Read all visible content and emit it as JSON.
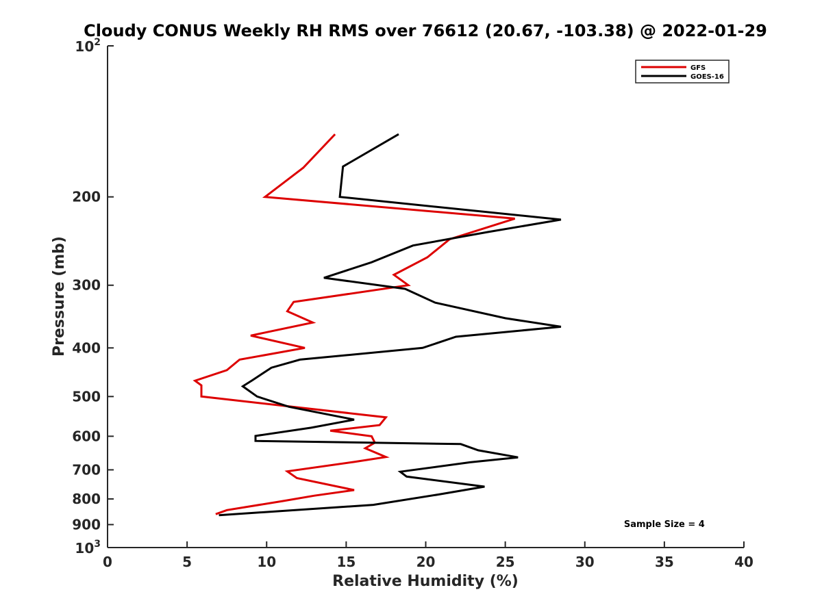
{
  "chart_data": {
    "type": "line",
    "title": "Cloudy CONUS Weekly RH RMS over 76612 (20.67, -103.38) @ 2022-01-29",
    "xlabel": "Relative Humidity (%)",
    "ylabel": "Pressure (mb)",
    "xlim": [
      0,
      40
    ],
    "ylim": [
      100,
      1000
    ],
    "yscale": "log",
    "y_reversed": true,
    "grid": false,
    "legend_position": "top-right",
    "x_ticks": [
      0,
      5,
      10,
      15,
      20,
      25,
      30,
      35,
      40
    ],
    "x_tick_labels": [
      "0",
      "5",
      "10",
      "15",
      "20",
      "25",
      "30",
      "35",
      "40"
    ],
    "y_ticks": [
      200,
      300,
      400,
      500,
      600,
      700,
      800,
      900
    ],
    "y_tick_labels": [
      "200",
      "300",
      "400",
      "500",
      "600",
      "700",
      "800",
      "900"
    ],
    "y_decade_ticks": [
      100,
      1000
    ],
    "y_decade_labels": [
      {
        "base": "10",
        "exp": "2"
      },
      {
        "base": "10",
        "exp": "3"
      }
    ],
    "series": [
      {
        "name": "GFS",
        "color": "#dd0000",
        "points": [
          [
            14.3,
            150
          ],
          [
            12.3,
            175
          ],
          [
            9.9,
            200
          ],
          [
            25.6,
            221
          ],
          [
            21.5,
            243
          ],
          [
            20.1,
            264
          ],
          [
            18.0,
            286
          ],
          [
            18.9,
            300
          ],
          [
            11.7,
            324
          ],
          [
            11.3,
            338
          ],
          [
            12.9,
            356
          ],
          [
            9.0,
            378
          ],
          [
            12.4,
            400
          ],
          [
            8.3,
            422
          ],
          [
            7.5,
            443
          ],
          [
            5.5,
            465
          ],
          [
            5.9,
            475
          ],
          [
            5.9,
            500
          ],
          [
            17.5,
            550
          ],
          [
            17.1,
            570
          ],
          [
            14.0,
            585
          ],
          [
            16.6,
            600
          ],
          [
            16.8,
            618
          ],
          [
            16.2,
            634
          ],
          [
            17.5,
            660
          ],
          [
            15.5,
            675
          ],
          [
            11.3,
            705
          ],
          [
            11.9,
            727
          ],
          [
            15.5,
            768
          ],
          [
            13.0,
            788
          ],
          [
            11.0,
            808
          ],
          [
            7.5,
            842
          ],
          [
            6.8,
            858
          ]
        ]
      },
      {
        "name": "GOES-16",
        "color": "#000000",
        "points": [
          [
            18.3,
            150
          ],
          [
            14.8,
            174
          ],
          [
            14.6,
            200
          ],
          [
            28.5,
            222
          ],
          [
            23.9,
            235
          ],
          [
            19.2,
            250
          ],
          [
            16.6,
            270
          ],
          [
            13.6,
            290
          ],
          [
            18.7,
            305
          ],
          [
            20.6,
            325
          ],
          [
            25.0,
            349
          ],
          [
            28.5,
            363
          ],
          [
            21.9,
            380
          ],
          [
            19.8,
            400
          ],
          [
            12.1,
            422
          ],
          [
            10.3,
            438
          ],
          [
            9.1,
            464
          ],
          [
            8.5,
            477
          ],
          [
            9.4,
            500
          ],
          [
            11.4,
            524
          ],
          [
            15.5,
            556
          ],
          [
            12.8,
            577
          ],
          [
            9.3,
            599
          ],
          [
            9.3,
            613
          ],
          [
            22.2,
            622
          ],
          [
            23.3,
            640
          ],
          [
            25.8,
            661
          ],
          [
            22.8,
            676
          ],
          [
            18.4,
            706
          ],
          [
            18.8,
            722
          ],
          [
            23.7,
            756
          ],
          [
            20.8,
            784
          ],
          [
            16.7,
            822
          ],
          [
            7.0,
            862
          ]
        ]
      }
    ],
    "annotations": [
      {
        "text": "Sample Size = 4",
        "x": 35,
        "y": 910
      }
    ]
  }
}
